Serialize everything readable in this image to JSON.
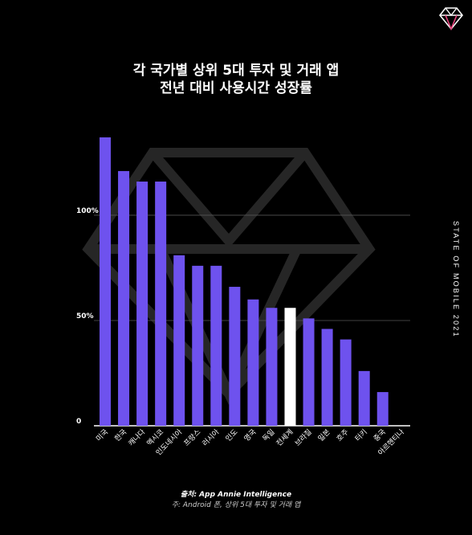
{
  "header": {
    "title_line1": "각 국가별 상위 5대 투자 및 거래 앱",
    "title_line2": "전년 대비 사용시간 성장률",
    "side_label": "STATE OF MOBILE 2021"
  },
  "footer": {
    "source": "출처: App Annie Intelligence",
    "note": "주: Android 폰, 상위 5대 투자 및 거래 앱"
  },
  "colors": {
    "bar": "#6e52ee",
    "highlight": "#ffffff",
    "background": "#000000"
  },
  "chart_data": {
    "type": "bar",
    "title": "각 국가별 상위 5대 투자 및 거래 앱 전년 대비 사용시간 성장률",
    "categories": [
      "미국",
      "한국",
      "캐나다",
      "멕시코",
      "인도네시아",
      "프랑스",
      "러시아",
      "인도",
      "영국",
      "독일",
      "전세계",
      "브라질",
      "일본",
      "호주",
      "터키",
      "중국",
      "아르헨티나"
    ],
    "values": [
      137,
      121,
      116,
      116,
      81,
      76,
      76,
      66,
      60,
      56,
      56,
      51,
      46,
      41,
      26,
      16,
      0
    ],
    "highlight_category": "전세계",
    "y_ticks": [
      {
        "value": 0,
        "label": "0"
      },
      {
        "value": 50,
        "label": "50%"
      },
      {
        "value": 100,
        "label": "100%"
      }
    ],
    "ylim": [
      0,
      137
    ],
    "grid": true,
    "xlabel": "",
    "ylabel": ""
  }
}
